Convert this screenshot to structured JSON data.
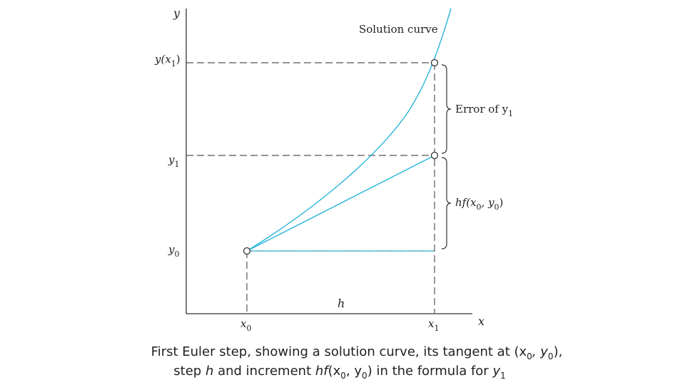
{
  "diagram": {
    "axes": {
      "y_label": "y",
      "x_label": "x"
    },
    "curve_label": "Solution curve",
    "ticks": {
      "y_x1": {
        "main": "y(x",
        "sub": "1",
        "close": ")"
      },
      "y1": {
        "main": "y",
        "sub": "1"
      },
      "y0": {
        "main": "y",
        "sub": "0"
      },
      "x0": {
        "main": "x",
        "sub": "0"
      },
      "x1": {
        "main": "x",
        "sub": "1"
      }
    },
    "step_label": "h",
    "error_label": {
      "main": "Error of y",
      "sub": "1"
    },
    "increment_label": {
      "pre": "hf(x",
      "sub1": "0",
      "mid": ", y",
      "sub2": "0",
      "close": ")"
    },
    "colors": {
      "curve": "#29b5dc",
      "axis": "#333333",
      "dash": "#555555",
      "text": "#222222"
    }
  },
  "caption": {
    "line1": {
      "text": "First Euler step, showing a solution curve, its tangent at (x",
      "s1": "0",
      "mid": ", y",
      "s2": "0",
      "end": "),"
    },
    "line2": {
      "pre": "step ",
      "h": "h",
      "mid": " and increment ",
      "hf": "hf",
      "paren": "(x",
      "s1": "0",
      "comma": ", y",
      "s2": "0",
      "close": ")",
      "tail": " in the formula for ",
      "y": "y",
      "s3": "1"
    }
  }
}
